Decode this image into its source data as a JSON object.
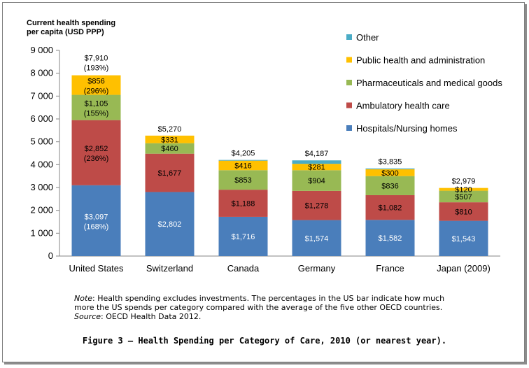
{
  "chart_data": {
    "type": "bar",
    "stacked": true,
    "ylabel": "Current health spending per capita (USD PPP)",
    "ylim": [
      0,
      9000
    ],
    "yticks": [
      "0",
      "1 000",
      "2 000",
      "3 000",
      "4 000",
      "5 000",
      "6 000",
      "7 000",
      "8 000",
      "9 000"
    ],
    "categories": [
      "United States",
      "Switzerland",
      "Canada",
      "Germany",
      "France",
      "Japan (2009)"
    ],
    "totals": [
      7910,
      5270,
      4205,
      4187,
      3835,
      2979
    ],
    "total_labels": [
      "$7,910",
      "$5,270",
      "$4,205",
      "$4,187",
      "$3,835",
      "$2,979"
    ],
    "total_pct_labels": [
      "(193%)",
      "",
      "",
      "",
      "",
      ""
    ],
    "series": [
      {
        "name": "Hospitals/Nursing homes",
        "color": "#4a7ebb",
        "values": [
          3097,
          2802,
          1716,
          1574,
          1582,
          1543
        ],
        "labels": [
          "$3,097",
          "$2,802",
          "$1,716",
          "$1,574",
          "$1,582",
          "$1,543"
        ],
        "pct_labels": [
          "(168%)",
          "",
          "",
          "",
          "",
          ""
        ]
      },
      {
        "name": "Ambulatory health care",
        "color": "#be4b48",
        "values": [
          2852,
          1677,
          1188,
          1278,
          1082,
          810
        ],
        "labels": [
          "$2,852",
          "$1,677",
          "$1,188",
          "$1,278",
          "$1,082",
          "$810"
        ],
        "pct_labels": [
          "(236%)",
          "",
          "",
          "",
          "",
          ""
        ]
      },
      {
        "name": "Pharmaceuticals and medical goods",
        "color": "#98b954",
        "values": [
          1105,
          460,
          853,
          904,
          836,
          507
        ],
        "labels": [
          "$1,105",
          "$460",
          "$853",
          "$904",
          "$836",
          "$507"
        ],
        "pct_labels": [
          "(155%)",
          "",
          "",
          "",
          "",
          ""
        ]
      },
      {
        "name": "Public health and administration",
        "color": "#ffc000",
        "values": [
          856,
          331,
          416,
          281,
          300,
          120
        ],
        "labels": [
          "$856",
          "$331",
          "$416",
          "$281",
          "$300",
          "$120"
        ],
        "pct_labels": [
          "(296%)",
          "",
          "",
          "",
          "",
          ""
        ]
      },
      {
        "name": "Other",
        "color": "#4bacc6",
        "values": [
          0,
          0,
          32,
          150,
          35,
          0
        ],
        "labels": [
          "",
          "",
          "",
          "",
          "",
          ""
        ],
        "pct_labels": [
          "",
          "",
          "",
          "",
          "",
          ""
        ]
      }
    ],
    "legend_position": "right",
    "legend_order": [
      "Other",
      "Public health and administration",
      "Pharmaceuticals and medical goods",
      "Ambulatory health care",
      "Hospitals/Nursing homes"
    ],
    "grid": false
  },
  "ytitle": {
    "line1": "Current health spending",
    "line2": "per capita (USD PPP)"
  },
  "note": {
    "label": "Note",
    "text1": ": Health spending excludes investments. The percentages in the US bar indicate how much",
    "text2": "more the US spends per category compared with the average of the five other OECD countries.",
    "source_label": "Source",
    "source_text": ": OECD Health Data 2012."
  },
  "caption": "Figure 3 – Health Spending per Category of Care, 2010 (or nearest year)."
}
